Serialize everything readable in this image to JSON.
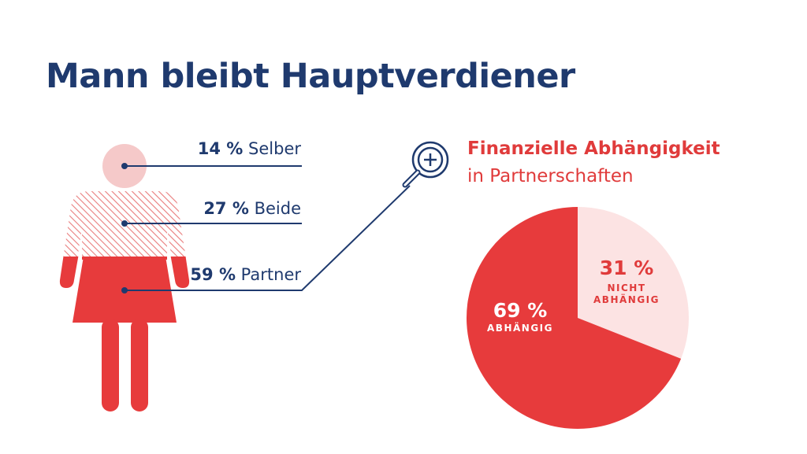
{
  "title": "Mann bleibt Hauptverdiener",
  "colors": {
    "navy": "#1f3a6e",
    "red": "#e73b3c",
    "light_pink": "#f8d7d7",
    "white": "#ffffff"
  },
  "icons": [
    "woman-figure-icon",
    "magnifier-plus-icon"
  ],
  "chart_data": [
    {
      "type": "stacked-pictogram",
      "categories": [
        "Selber",
        "Beide",
        "Partner"
      ],
      "values": [
        14,
        27,
        59
      ],
      "labels": [
        {
          "percent": "14 %",
          "name": "Selber"
        },
        {
          "percent": "27 %",
          "name": "Beide"
        },
        {
          "percent": "59 %",
          "name": "Partner"
        }
      ]
    },
    {
      "type": "pie",
      "title": "Finanzielle Abhängigkeit",
      "subtitle": "in Partnerschaften",
      "slices": [
        {
          "label": "NICHT ABHÄNGIG",
          "label_lines": [
            "NICHT",
            "ABHÄNGIG"
          ],
          "value": 31,
          "display": "31 %",
          "color": "#fce3e3"
        },
        {
          "label": "ABHÄNGIG",
          "label_lines": [
            "ABHÄNGIG"
          ],
          "value": 69,
          "display": "69 %",
          "color": "#e73b3c"
        }
      ]
    }
  ]
}
